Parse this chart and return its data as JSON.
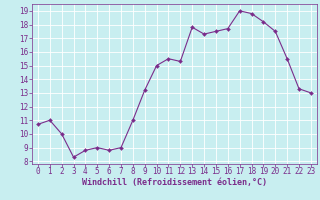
{
  "x": [
    0,
    1,
    2,
    3,
    4,
    5,
    6,
    7,
    8,
    9,
    10,
    11,
    12,
    13,
    14,
    15,
    16,
    17,
    18,
    19,
    20,
    21,
    22,
    23
  ],
  "y": [
    10.7,
    11.0,
    10.0,
    8.3,
    8.8,
    9.0,
    8.8,
    9.0,
    11.0,
    13.2,
    15.0,
    15.5,
    15.3,
    17.8,
    17.3,
    17.5,
    17.7,
    19.0,
    18.8,
    18.2,
    17.5,
    15.5,
    13.3,
    13.0
  ],
  "line_color": "#7b2d8b",
  "marker_color": "#7b2d8b",
  "bg_color": "#c8eef0",
  "grid_color": "#b0dde0",
  "xlabel": "Windchill (Refroidissement éolien,°C)",
  "xlabel_color": "#7b2d8b",
  "tick_color": "#7b2d8b",
  "ylim": [
    7.8,
    19.5
  ],
  "xlim": [
    -0.5,
    23.5
  ],
  "yticks": [
    8,
    9,
    10,
    11,
    12,
    13,
    14,
    15,
    16,
    17,
    18,
    19
  ],
  "xticks": [
    0,
    1,
    2,
    3,
    4,
    5,
    6,
    7,
    8,
    9,
    10,
    11,
    12,
    13,
    14,
    15,
    16,
    17,
    18,
    19,
    20,
    21,
    22,
    23
  ],
  "font_size_tick": 5.5,
  "font_size_label": 6.0,
  "line_width": 0.8,
  "marker_size": 2.0
}
